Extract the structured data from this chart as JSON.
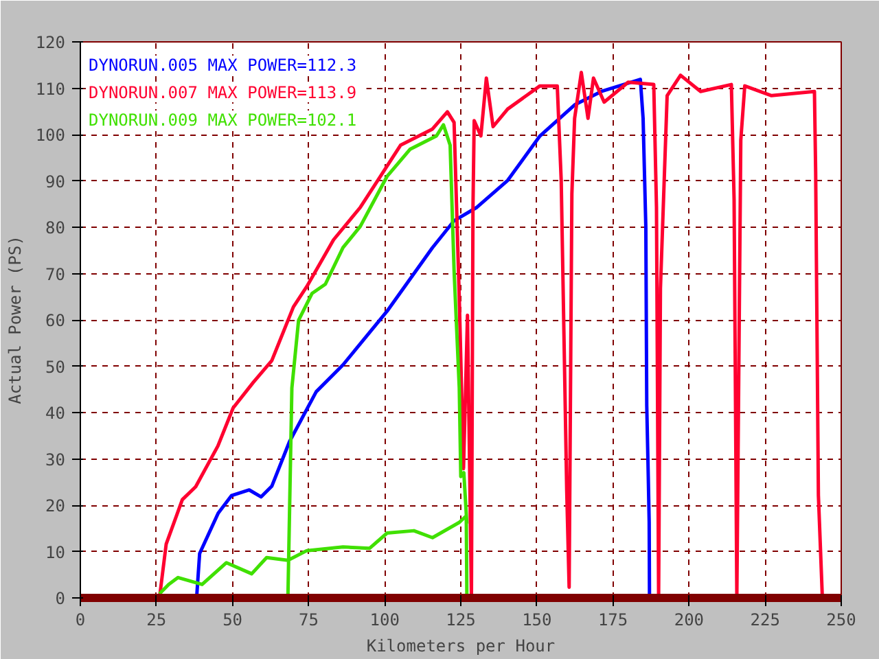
{
  "chart_data": {
    "type": "line",
    "xlabel": "Kilometers per Hour",
    "ylabel": "Actual Power (PS)",
    "xlim": [
      0,
      250
    ],
    "ylim": [
      0,
      120
    ],
    "xticks": [
      0,
      25,
      50,
      75,
      100,
      125,
      150,
      175,
      200,
      225,
      250
    ],
    "yticks": [
      0,
      10,
      20,
      30,
      40,
      50,
      60,
      70,
      80,
      90,
      100,
      110,
      120
    ],
    "grid": true,
    "legend": "top left",
    "marker": "none",
    "line_style": "solid",
    "series": [
      {
        "name": "DYNORUN.005  MAX POWER=112.3",
        "color": "#0000ff",
        "x": [
          38.2,
          39.2,
          45.3,
          49.7,
          55.5,
          59.4,
          62.9,
          68.7,
          77.5,
          86.3,
          100.8,
          115.7,
          122.8,
          130.3,
          140.4,
          151,
          162.4,
          171.2,
          184,
          184.9,
          185.8,
          186.1,
          186.6,
          186.9,
          187
        ],
        "values": [
          0,
          9.6,
          18.3,
          22.1,
          23.3,
          21.8,
          24.1,
          33.7,
          44.5,
          50.3,
          61.9,
          75.6,
          81.4,
          84.3,
          90.1,
          99.7,
          106.4,
          109.3,
          111.9,
          103.5,
          80,
          41.6,
          26.2,
          16.3,
          0
        ]
      },
      {
        "name": "DYNORUN.007  MAX POWER=113.9",
        "color": "#ff0030",
        "x": [
          26,
          28.2,
          33.5,
          37.9,
          45.2,
          50.2,
          56.8,
          62.9,
          70,
          74.4,
          83.2,
          92,
          99.5,
          105.2,
          115.7,
          120.6,
          122.8,
          124.5,
          125.9,
          127.2,
          128.5,
          129,
          129.4,
          131.6,
          133.4,
          135.6,
          140.4,
          151,
          156.7,
          158,
          159.8,
          160.6,
          161.5,
          162.4,
          164.6,
          166.8,
          168.6,
          172.1,
          180,
          188.4,
          189.3,
          190,
          190.6,
          192.8,
          197.2,
          203.8,
          213.9,
          214.8,
          215.7,
          217,
          218.3,
          227.1,
          241.2,
          241.6,
          242.5,
          243.8
        ],
        "values": [
          0,
          11.6,
          21.2,
          24,
          32.8,
          41,
          46.5,
          51.2,
          62.8,
          67.2,
          77.3,
          84.3,
          91.9,
          97.7,
          101.2,
          104.9,
          102.6,
          64.8,
          27.9,
          61,
          0,
          84,
          103,
          99.7,
          112.2,
          101.7,
          105.5,
          110.5,
          110.5,
          90,
          23.3,
          2.3,
          87.2,
          103.5,
          113.4,
          103.5,
          112.2,
          107,
          111.3,
          110.8,
          84.3,
          0,
          66.8,
          108.4,
          112.8,
          109.3,
          110.8,
          86,
          0,
          98.8,
          110.5,
          108.4,
          109.3,
          91.9,
          22.1,
          0
        ]
      },
      {
        "name": "DYNORUN.009  MAX POWER=102.1",
        "color": "#40e000",
        "x": [
          26,
          29,
          32.1,
          40,
          48,
          56.3,
          61.2,
          68.2,
          74.4,
          86.3,
          95,
          100.8,
          109.6,
          115.7,
          124.5,
          126.8,
          127,
          68.2,
          69.5,
          71.7,
          76.1,
          80.5,
          86.3,
          92,
          100.8,
          108.3,
          117,
          119.3,
          121.5,
          122.8,
          124.5,
          125,
          126,
          127
        ],
        "values": [
          0.9,
          2.9,
          4.4,
          2.9,
          7.6,
          5.2,
          8.7,
          8.1,
          10.2,
          11,
          10.7,
          14,
          14.5,
          13,
          16.3,
          17.7,
          0,
          0,
          45.3,
          59.9,
          65.7,
          67.7,
          75.6,
          80.2,
          91,
          96.8,
          99.7,
          102.1,
          97.7,
          70.6,
          45.3,
          26.2,
          27,
          16
        ]
      }
    ]
  }
}
